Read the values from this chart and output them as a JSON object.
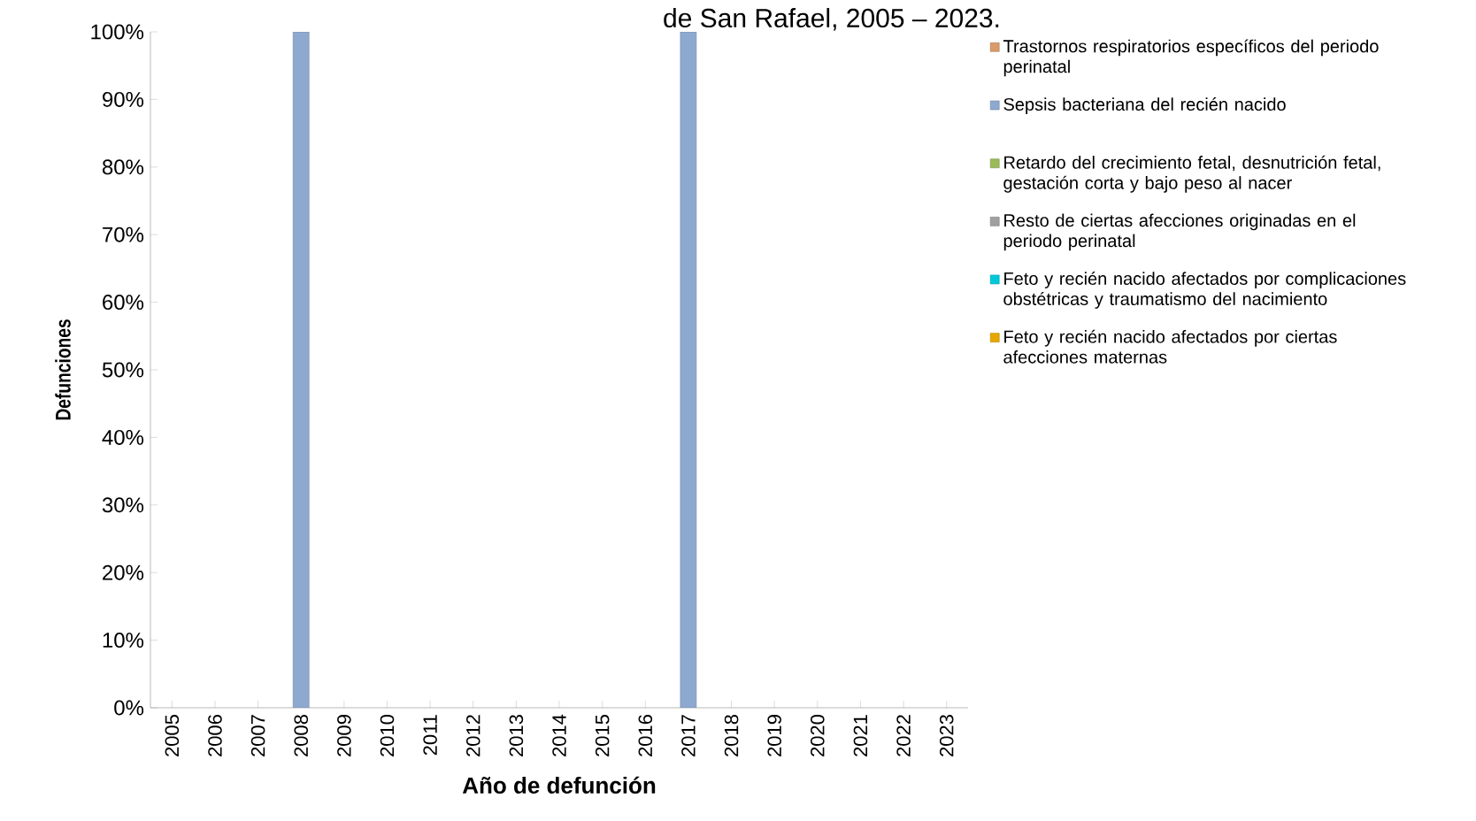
{
  "chart_data": {
    "type": "bar",
    "stacked": true,
    "title": "de San Rafael, 2005 – 2023.",
    "xlabel": "Año de defunción",
    "ylabel": "Defunciones",
    "categories": [
      "2005",
      "2006",
      "2007",
      "2008",
      "2009",
      "2010",
      "2011",
      "2012",
      "2013",
      "2014",
      "2015",
      "2016",
      "2017",
      "2018",
      "2019",
      "2020",
      "2021",
      "2022",
      "2023"
    ],
    "series": [
      {
        "name": "Trastornos respiratorios específicos del periodo perinatal",
        "color": "#d99a6c",
        "values": [
          0,
          0,
          0,
          0,
          0,
          0,
          0,
          0,
          0,
          0,
          0,
          0,
          0,
          0,
          0,
          0,
          0,
          0,
          0
        ]
      },
      {
        "name": "Sepsis bacteriana del recién nacido",
        "color": "#8ea9cf",
        "values": [
          0,
          0,
          0,
          100,
          0,
          0,
          0,
          0,
          0,
          0,
          0,
          0,
          100,
          0,
          0,
          0,
          0,
          0,
          0
        ]
      },
      {
        "name": "Retardo del crecimiento fetal, desnutrición fetal, gestación corta y bajo peso al nacer",
        "color": "#9bbb59",
        "values": [
          0,
          0,
          0,
          0,
          0,
          0,
          0,
          0,
          0,
          0,
          0,
          0,
          0,
          0,
          0,
          0,
          0,
          0,
          0
        ]
      },
      {
        "name": "Resto de ciertas afecciones originadas en el periodo perinatal",
        "color": "#a0a0a0",
        "values": [
          0,
          0,
          0,
          0,
          0,
          0,
          0,
          0,
          0,
          0,
          0,
          0,
          0,
          0,
          0,
          0,
          0,
          0,
          0
        ]
      },
      {
        "name": "Feto y recién nacido afectados por complicaciones obstétricas y traumatismo del nacimiento",
        "color": "#00c8d8",
        "values": [
          0,
          0,
          0,
          0,
          0,
          0,
          0,
          0,
          0,
          0,
          0,
          0,
          0,
          0,
          0,
          0,
          0,
          0,
          0
        ]
      },
      {
        "name": "Feto y recién nacido afectados por ciertas afecciones maternas",
        "color": "#e6a800",
        "values": [
          0,
          0,
          0,
          0,
          0,
          0,
          0,
          0,
          0,
          0,
          0,
          0,
          0,
          0,
          0,
          0,
          0,
          0,
          0
        ]
      }
    ],
    "ylim": [
      0,
      100
    ],
    "yticks": [
      {
        "value": 0,
        "label": "0%"
      },
      {
        "value": 10,
        "label": "10%"
      },
      {
        "value": 20,
        "label": "20%"
      },
      {
        "value": 30,
        "label": "30%"
      },
      {
        "value": 40,
        "label": "40%"
      },
      {
        "value": 50,
        "label": "50%"
      },
      {
        "value": 60,
        "label": "60%"
      },
      {
        "value": 70,
        "label": "70%"
      },
      {
        "value": 80,
        "label": "80%"
      },
      {
        "value": 90,
        "label": "90%"
      },
      {
        "value": 100,
        "label": "100%"
      }
    ],
    "legend": "right"
  }
}
